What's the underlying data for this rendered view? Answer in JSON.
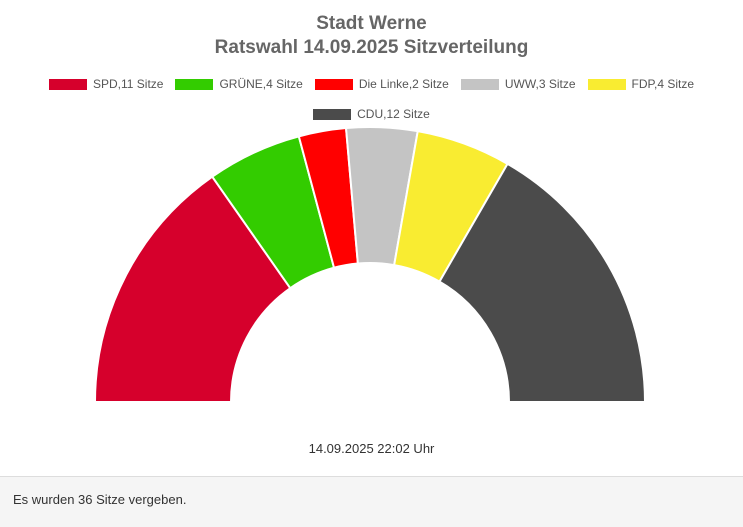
{
  "chart_data": {
    "type": "pie",
    "subtype": "parliament-semicircle",
    "title": "Stadt Werne",
    "subtitle": "Ratswahl 14.09.2025 Sitzverteilung",
    "legend_position": "top",
    "series": [
      {
        "label": "SPD,11 Sitze",
        "name": "SPD",
        "value": 11,
        "color": "#d6002c"
      },
      {
        "label": "GRÜNE,4 Sitze",
        "name": "GRÜNE",
        "value": 4,
        "color": "#33cc00"
      },
      {
        "label": "Die Linke,2 Sitze",
        "name": "Die Linke",
        "value": 2,
        "color": "#ff0000"
      },
      {
        "label": "UWW,3 Sitze",
        "name": "UWW",
        "value": 3,
        "color": "#c4c4c4"
      },
      {
        "label": "FDP,4 Sitze",
        "name": "FDP",
        "value": 4,
        "color": "#f9ec31"
      },
      {
        "label": "CDU,12 Sitze",
        "name": "CDU",
        "value": 12,
        "color": "#4b4b4b"
      }
    ],
    "timestamp": "14.09.2025 22:02 Uhr"
  },
  "footer": {
    "text": "Es wurden 36 Sitze vergeben."
  }
}
